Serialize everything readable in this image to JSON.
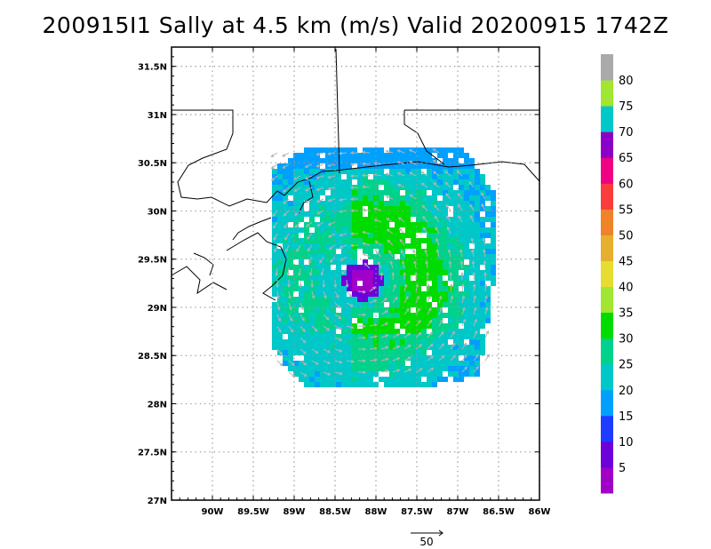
{
  "chart_data": {
    "type": "heatmap",
    "title": "200915I1 Sally at 4.5 km (m/s) Valid 20200915 1742Z",
    "xlabel": "",
    "ylabel": "",
    "xlim": [
      -90.5,
      -86.0
    ],
    "ylim": [
      27.0,
      31.7
    ],
    "grid": true,
    "x_ticks": [
      -90.0,
      -89.5,
      -89.0,
      -88.5,
      -88.0,
      -87.5,
      -87.0,
      -86.5,
      -86.0
    ],
    "x_tick_labels": [
      "90W",
      "89.5W",
      "89W",
      "88.5W",
      "88W",
      "87.5W",
      "87W",
      "86.5W",
      "86W"
    ],
    "y_ticks": [
      27.0,
      27.5,
      28.0,
      28.5,
      29.0,
      29.5,
      30.0,
      30.5,
      31.0,
      31.5
    ],
    "y_tick_labels": [
      "27N",
      "27.5N",
      "28N",
      "28.5N",
      "29N",
      "29.5N",
      "30N",
      "30.5N",
      "31N",
      "31.5N"
    ],
    "colorbar": {
      "ticks": [
        5,
        10,
        15,
        20,
        25,
        30,
        35,
        40,
        45,
        50,
        55,
        60,
        65,
        70,
        75,
        80
      ],
      "colors": [
        "#a000c8",
        "#6e00dc",
        "#1e3cff",
        "#00a0ff",
        "#00c8c8",
        "#00d28c",
        "#00dc00",
        "#a0e632",
        "#e6dc32",
        "#e6af2d",
        "#f08228",
        "#fa3c3c",
        "#f00082",
        "#8c00c8",
        "#00c8c8",
        "#a0e632",
        "#aaaaaa"
      ]
    },
    "storm_center": {
      "lon": -88.2,
      "lat": 29.3
    },
    "wind_field": {
      "inner_core_max_ms": 8,
      "peak_band_ms": 32,
      "peak_band_location": "north-east quadrant",
      "outer_ms": 22
    },
    "reference_vector": {
      "label": "50",
      "value_ms": 50
    }
  },
  "colors": {
    "grid": "#999999",
    "frame": "#000000",
    "coast": "#000000",
    "vector": "#b4b4b4"
  }
}
